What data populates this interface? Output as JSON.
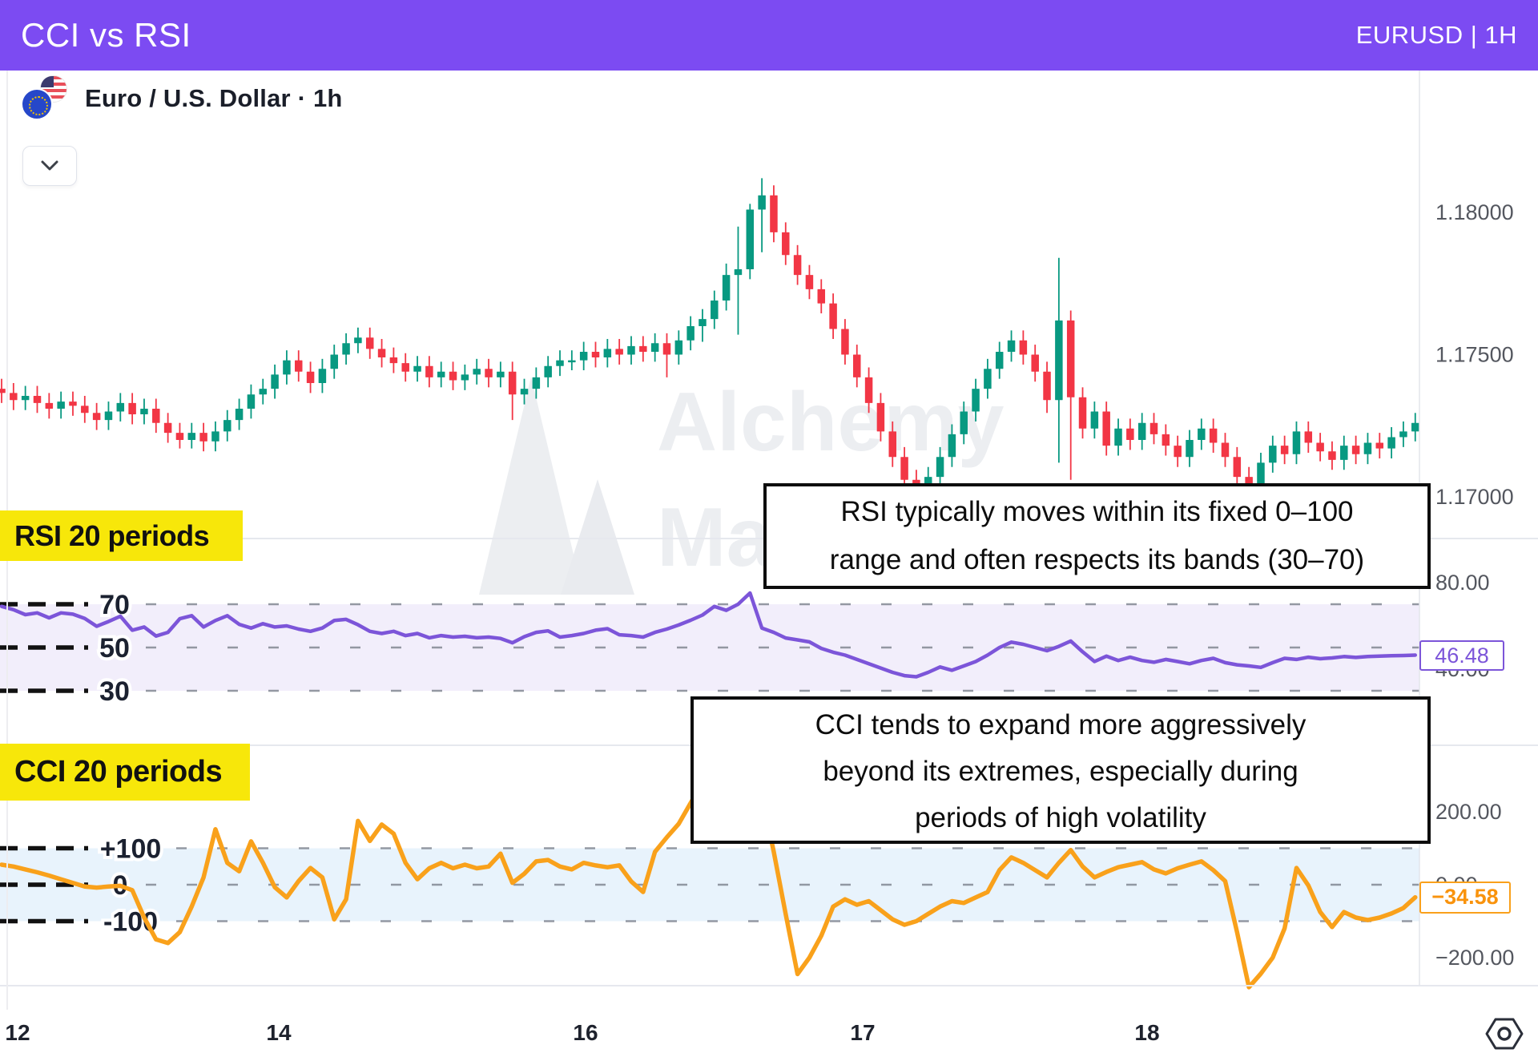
{
  "header": {
    "title": "CCI vs RSI",
    "symbol_timeframe": "EURUSD | 1H",
    "accent_color": "#7C4BF2"
  },
  "symbol_bar": {
    "text": "Euro / U.S. Dollar · 1h",
    "base_flag": "eu-flag-icon",
    "quote_flag": "us-flag-icon"
  },
  "watermark": {
    "line1": "Alchemy",
    "line2": "Markets"
  },
  "annotations": {
    "rsi": {
      "line1": "RSI typically moves within its fixed 0–100",
      "line2": "range and often respects its bands (30–70)"
    },
    "cci": {
      "line1": "CCI tends to expand more aggressively",
      "line2": "beyond its extremes, especially during",
      "line3": "periods of high volatility"
    }
  },
  "icons": {
    "collapse": "chevron-down-icon",
    "axis_settings": "hexagon-settings-icon"
  },
  "colors": {
    "header_bg": "#7C4BF2",
    "candle_up": "#089981",
    "candle_down": "#F23645",
    "rsi_line": "#7C55D9",
    "rsi_band_fill": "#EFEBF9",
    "cci_line": "#F9A11B",
    "cci_band_fill": "#E7F1FA",
    "label_bg": "#F7E70A",
    "level_dash_black": "#111111",
    "grid_dash_gray": "#7B818C",
    "axis_text": "#54575F"
  },
  "chart_data": {
    "type": "candlestick+line-indicators",
    "symbol": "Euro / U.S. Dollar",
    "interval": "1h",
    "grid": "dashed-levels",
    "legend_position": "none",
    "x_axis": {
      "tick_labels": [
        "12",
        "14",
        "16",
        "17",
        "18"
      ],
      "tick_x": [
        22,
        348,
        731,
        1077,
        1432
      ]
    },
    "price_pane": {
      "type": "candlestick",
      "y_ticks": [
        {
          "value": 1.18,
          "label": "1.18000"
        },
        {
          "value": 1.175,
          "label": "1.17500"
        },
        {
          "value": 1.17,
          "label": "1.17000"
        }
      ],
      "ylim": [
        1.169,
        1.1825
      ],
      "candles": [
        [
          1.1738,
          1.17415,
          1.1733,
          1.17365
        ],
        [
          1.17365,
          1.174,
          1.17305,
          1.1734
        ],
        [
          1.1734,
          1.1739,
          1.17305,
          1.17355
        ],
        [
          1.17355,
          1.1739,
          1.17295,
          1.1733
        ],
        [
          1.1733,
          1.17365,
          1.17275,
          1.1731
        ],
        [
          1.1731,
          1.1737,
          1.17275,
          1.17335
        ],
        [
          1.17335,
          1.1737,
          1.17285,
          1.1732
        ],
        [
          1.1732,
          1.17355,
          1.1726,
          1.17295
        ],
        [
          1.17295,
          1.1733,
          1.17235,
          1.1727
        ],
        [
          1.1727,
          1.17335,
          1.17235,
          1.173
        ],
        [
          1.173,
          1.17365,
          1.17265,
          1.1733
        ],
        [
          1.1733,
          1.17365,
          1.17255,
          1.1729
        ],
        [
          1.1729,
          1.17345,
          1.17255,
          1.1731
        ],
        [
          1.1731,
          1.17345,
          1.17225,
          1.1726
        ],
        [
          1.1726,
          1.17295,
          1.1719,
          1.17225
        ],
        [
          1.17225,
          1.1726,
          1.1717,
          1.172
        ],
        [
          1.172,
          1.1726,
          1.1717,
          1.17225
        ],
        [
          1.17225,
          1.1726,
          1.1716,
          1.17195
        ],
        [
          1.17195,
          1.17265,
          1.1716,
          1.1723
        ],
        [
          1.1723,
          1.17305,
          1.17195,
          1.1727
        ],
        [
          1.1727,
          1.17345,
          1.17235,
          1.1731
        ],
        [
          1.1731,
          1.17395,
          1.17275,
          1.1736
        ],
        [
          1.1736,
          1.17415,
          1.17325,
          1.1738
        ],
        [
          1.1738,
          1.17465,
          1.17345,
          1.1743
        ],
        [
          1.1743,
          1.17515,
          1.17395,
          1.1748
        ],
        [
          1.1748,
          1.17515,
          1.17405,
          1.1744
        ],
        [
          1.1744,
          1.17475,
          1.17365,
          1.174
        ],
        [
          1.174,
          1.17485,
          1.17365,
          1.1745
        ],
        [
          1.1745,
          1.17535,
          1.17415,
          1.175
        ],
        [
          1.175,
          1.17575,
          1.17465,
          1.1754
        ],
        [
          1.1754,
          1.17595,
          1.17505,
          1.1756
        ],
        [
          1.1756,
          1.17595,
          1.17485,
          1.1752
        ],
        [
          1.1752,
          1.17555,
          1.17455,
          1.1749
        ],
        [
          1.1749,
          1.17525,
          1.17435,
          1.1747
        ],
        [
          1.1747,
          1.17505,
          1.17405,
          1.1744
        ],
        [
          1.1744,
          1.17495,
          1.17405,
          1.1746
        ],
        [
          1.1746,
          1.17495,
          1.17385,
          1.1742
        ],
        [
          1.1742,
          1.17475,
          1.17385,
          1.1744
        ],
        [
          1.1744,
          1.17475,
          1.17375,
          1.1741
        ],
        [
          1.1741,
          1.17465,
          1.17375,
          1.1743
        ],
        [
          1.1743,
          1.17485,
          1.17395,
          1.1745
        ],
        [
          1.1745,
          1.17485,
          1.17385,
          1.1742
        ],
        [
          1.1742,
          1.17475,
          1.17385,
          1.1744
        ],
        [
          1.1744,
          1.17475,
          1.1727,
          1.1736
        ],
        [
          1.1736,
          1.17415,
          1.17325,
          1.1738
        ],
        [
          1.1738,
          1.17455,
          1.17345,
          1.1742
        ],
        [
          1.1742,
          1.17495,
          1.17385,
          1.1746
        ],
        [
          1.1746,
          1.17515,
          1.17425,
          1.1748
        ],
        [
          1.1748,
          1.17515,
          1.17445,
          1.1748
        ],
        [
          1.1748,
          1.17545,
          1.17445,
          1.1751
        ],
        [
          1.1751,
          1.17545,
          1.17455,
          1.1749
        ],
        [
          1.1749,
          1.17555,
          1.17455,
          1.1752
        ],
        [
          1.1752,
          1.17555,
          1.17465,
          1.175
        ],
        [
          1.175,
          1.17565,
          1.17465,
          1.1753
        ],
        [
          1.1753,
          1.17565,
          1.17475,
          1.1751
        ],
        [
          1.1751,
          1.17575,
          1.17475,
          1.1754
        ],
        [
          1.1754,
          1.17575,
          1.1742,
          1.175
        ],
        [
          1.175,
          1.17585,
          1.17465,
          1.1755
        ],
        [
          1.1755,
          1.17635,
          1.17515,
          1.176
        ],
        [
          1.176,
          1.1766,
          1.17545,
          1.17625
        ],
        [
          1.17625,
          1.17725,
          1.1759,
          1.1769
        ],
        [
          1.1769,
          1.1782,
          1.17655,
          1.1778
        ],
        [
          1.1778,
          1.1795,
          1.1757,
          1.178
        ],
        [
          1.178,
          1.1803,
          1.17765,
          1.1801
        ],
        [
          1.1801,
          1.1812,
          1.1786,
          1.1806
        ],
        [
          1.1806,
          1.18095,
          1.17895,
          1.1793
        ],
        [
          1.1793,
          1.17965,
          1.17815,
          1.1785
        ],
        [
          1.1785,
          1.17885,
          1.17745,
          1.1778
        ],
        [
          1.1778,
          1.17815,
          1.17695,
          1.1773
        ],
        [
          1.1773,
          1.17765,
          1.17645,
          1.1768
        ],
        [
          1.1768,
          1.17715,
          1.17555,
          1.1759
        ],
        [
          1.1759,
          1.17625,
          1.17465,
          1.175
        ],
        [
          1.175,
          1.17535,
          1.17385,
          1.1742
        ],
        [
          1.1742,
          1.17455,
          1.17295,
          1.1733
        ],
        [
          1.1733,
          1.17365,
          1.17195,
          1.1723
        ],
        [
          1.1723,
          1.17265,
          1.17105,
          1.1714
        ],
        [
          1.1714,
          1.17175,
          1.17,
          1.1706
        ],
        [
          1.1706,
          1.17095,
          1.1696,
          1.1701
        ],
        [
          1.1701,
          1.17105,
          1.16975,
          1.1707
        ],
        [
          1.1707,
          1.17175,
          1.17035,
          1.1714
        ],
        [
          1.1714,
          1.17255,
          1.17105,
          1.1722
        ],
        [
          1.1722,
          1.17335,
          1.17185,
          1.173
        ],
        [
          1.173,
          1.17415,
          1.17265,
          1.1738
        ],
        [
          1.1738,
          1.17485,
          1.17345,
          1.1745
        ],
        [
          1.1745,
          1.17545,
          1.17415,
          1.1751
        ],
        [
          1.1751,
          1.17585,
          1.17475,
          1.1755
        ],
        [
          1.1755,
          1.17585,
          1.17465,
          1.175
        ],
        [
          1.175,
          1.17535,
          1.17405,
          1.1744
        ],
        [
          1.1744,
          1.17475,
          1.17295,
          1.1734
        ],
        [
          1.1734,
          1.1784,
          1.1712,
          1.1762
        ],
        [
          1.1762,
          1.17655,
          1.1706,
          1.1735
        ],
        [
          1.1735,
          1.17385,
          1.17205,
          1.1724
        ],
        [
          1.1724,
          1.17335,
          1.17205,
          1.173
        ],
        [
          1.173,
          1.17335,
          1.17145,
          1.1718
        ],
        [
          1.1718,
          1.17275,
          1.17145,
          1.1724
        ],
        [
          1.1724,
          1.17275,
          1.17165,
          1.172
        ],
        [
          1.172,
          1.17295,
          1.17165,
          1.1726
        ],
        [
          1.1726,
          1.17295,
          1.17185,
          1.1722
        ],
        [
          1.1722,
          1.17255,
          1.17145,
          1.1718
        ],
        [
          1.1718,
          1.17215,
          1.17105,
          1.1714
        ],
        [
          1.1714,
          1.17235,
          1.17105,
          1.172
        ],
        [
          1.172,
          1.17275,
          1.17165,
          1.1724
        ],
        [
          1.1724,
          1.17275,
          1.17155,
          1.1719
        ],
        [
          1.1719,
          1.17225,
          1.17105,
          1.1714
        ],
        [
          1.1714,
          1.17175,
          1.1703,
          1.1707
        ],
        [
          1.1707,
          1.17105,
          1.1699,
          1.1703
        ],
        [
          1.1703,
          1.17155,
          1.17,
          1.1712
        ],
        [
          1.1712,
          1.17215,
          1.17085,
          1.1718
        ],
        [
          1.1718,
          1.17215,
          1.17115,
          1.1715
        ],
        [
          1.1715,
          1.17265,
          1.17115,
          1.1723
        ],
        [
          1.1723,
          1.17265,
          1.17155,
          1.1719
        ],
        [
          1.1719,
          1.17225,
          1.17125,
          1.1716
        ],
        [
          1.1716,
          1.17195,
          1.17095,
          1.1713
        ],
        [
          1.1713,
          1.17215,
          1.17095,
          1.1718
        ],
        [
          1.1718,
          1.17215,
          1.17115,
          1.1715
        ],
        [
          1.1715,
          1.17225,
          1.17115,
          1.1719
        ],
        [
          1.1719,
          1.17225,
          1.17135,
          1.1717
        ],
        [
          1.1717,
          1.17245,
          1.17135,
          1.1721
        ],
        [
          1.1721,
          1.17265,
          1.17175,
          1.1723
        ],
        [
          1.1723,
          1.17295,
          1.17195,
          1.1726
        ]
      ]
    },
    "rsi_pane": {
      "type": "line",
      "title": "RSI 20 periods",
      "band": [
        30,
        70
      ],
      "levels": [
        {
          "value": 70,
          "label": "70"
        },
        {
          "value": 50,
          "label": "50"
        },
        {
          "value": 30,
          "label": "30"
        }
      ],
      "axis_ticks": [
        {
          "value": 80,
          "label": "80.00"
        },
        {
          "value": 40,
          "label": "40.00"
        }
      ],
      "last_value": 46.48,
      "last_value_label": "46.48",
      "values": [
        69,
        67.5,
        65.2,
        66,
        63.7,
        66,
        65.4,
        63.4,
        59.8,
        62,
        64.5,
        58,
        59.5,
        55.3,
        57,
        63.3,
        64.7,
        59.5,
        62.5,
        64.7,
        60.7,
        59,
        61,
        59.5,
        60,
        58.5,
        57.5,
        59,
        62.5,
        63,
        60.5,
        57.5,
        56.5,
        57.5,
        55.5,
        56.5,
        54.5,
        55.5,
        54.8,
        55.2,
        54.5,
        54.8,
        54.2,
        52.2,
        55,
        57,
        57.7,
        54.8,
        55.5,
        56.5,
        58,
        58.7,
        55.9,
        55.5,
        54.8,
        57,
        58.5,
        60.4,
        62.6,
        65,
        69,
        67.2,
        70,
        75.2,
        59,
        57,
        54.4,
        53.5,
        52.6,
        49.6,
        47.8,
        46.5,
        44.5,
        42.5,
        40.5,
        38.5,
        37,
        36.5,
        38.5,
        41,
        39.5,
        41.5,
        43.5,
        46.5,
        50,
        52.5,
        51.5,
        50,
        48.5,
        50.5,
        53,
        48,
        43.5,
        46,
        44,
        45.5,
        44,
        43.2,
        44.5,
        43.5,
        42.5,
        44,
        45,
        43,
        42,
        41.5,
        40.8,
        43,
        45,
        44.5,
        45.5,
        44.8,
        45.2,
        45.8,
        45.4,
        45.8,
        46,
        46.2,
        46.3,
        46.48
      ]
    },
    "cci_pane": {
      "type": "line",
      "title": "CCI 20 periods",
      "band": [
        -100,
        100
      ],
      "levels": [
        {
          "value": 100,
          "label": "+100"
        },
        {
          "value": 0,
          "label": "0"
        },
        {
          "value": -100,
          "label": "-100"
        }
      ],
      "axis_ticks": [
        {
          "value": 200,
          "label": "200.00"
        },
        {
          "value": 0,
          "label": "0.00"
        },
        {
          "value": -200,
          "label": "−200.00"
        }
      ],
      "last_value": -34.58,
      "last_value_label": "−34.58",
      "values": [
        55,
        50,
        42,
        34,
        25,
        15,
        5,
        -5,
        -8,
        -5,
        -3,
        -15,
        -90,
        -150,
        -160,
        -130,
        -60,
        20,
        152,
        60,
        37,
        119,
        60,
        -7,
        -35,
        10,
        46,
        20,
        -95,
        -40,
        175,
        120,
        165,
        140,
        60,
        15,
        45,
        60,
        45,
        55,
        45,
        50,
        85,
        5,
        30,
        64,
        68,
        50,
        42,
        60,
        53,
        48,
        53,
        9,
        -20,
        90,
        130,
        167,
        224,
        280,
        330,
        356,
        301,
        321,
        244,
        90,
        -80,
        -245,
        -200,
        -140,
        -60,
        -40,
        -55,
        -45,
        -70,
        -95,
        -110,
        -100,
        -80,
        -60,
        -45,
        -50,
        -35,
        -20,
        40,
        75,
        60,
        40,
        20,
        60,
        95,
        50,
        20,
        35,
        48,
        55,
        62,
        42,
        31,
        45,
        55,
        64,
        40,
        10,
        -130,
        -281,
        -244,
        -200,
        -120,
        46,
        -2,
        -75,
        -116,
        -75,
        -90,
        -97,
        -90,
        -79,
        -64,
        -34.58
      ]
    }
  }
}
